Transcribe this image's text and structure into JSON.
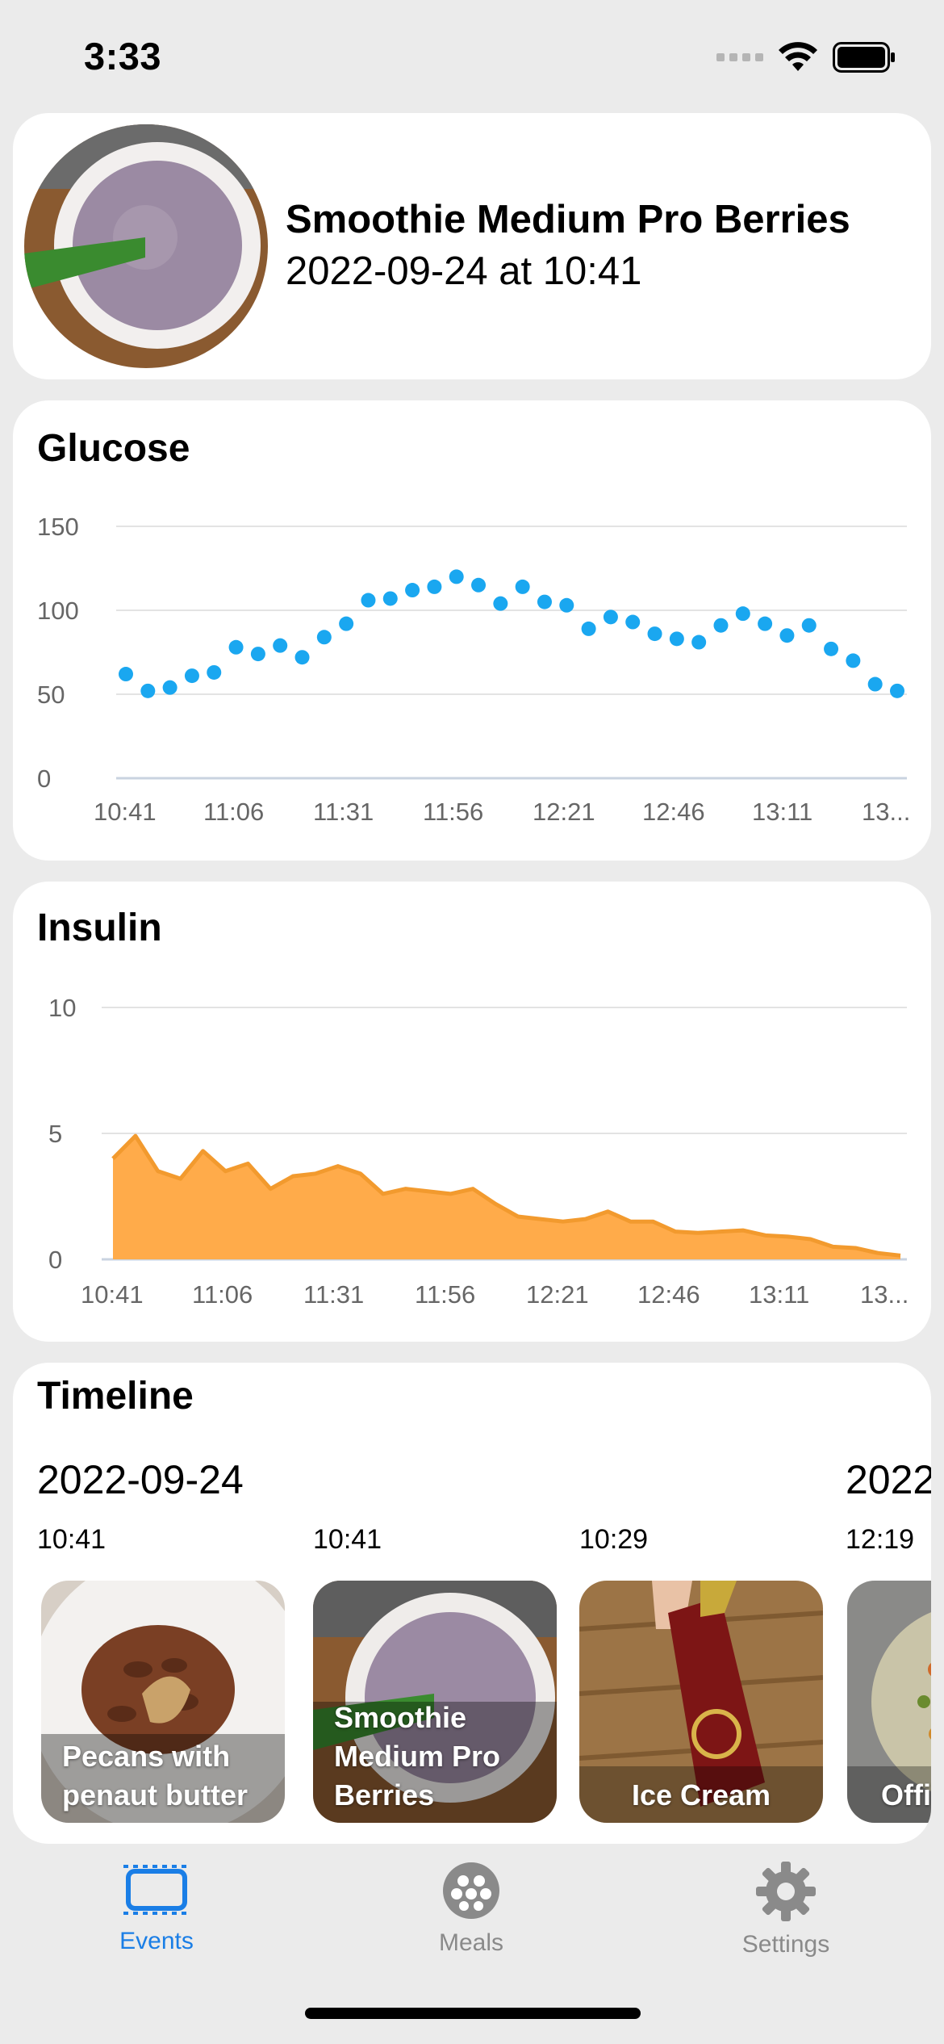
{
  "status_bar": {
    "time": "3:33"
  },
  "header": {
    "meal_name": "Smoothie Medium Pro Berries",
    "meal_datetime": "2022-09-24 at 10:41"
  },
  "glucose": {
    "title": "Glucose",
    "chart_data": {
      "type": "scatter",
      "title": "Glucose",
      "x_tick_labels": [
        "10:41",
        "11:06",
        "11:31",
        "11:56",
        "12:21",
        "12:46",
        "13:11",
        "13..."
      ],
      "y_ticks": [
        "0",
        "50",
        "100",
        "150"
      ],
      "ylim": [
        0,
        150
      ],
      "grid": true,
      "color": "#1aa7f0",
      "values": [
        62,
        52,
        54,
        61,
        63,
        78,
        74,
        79,
        72,
        84,
        92,
        106,
        107,
        112,
        114,
        120,
        115,
        104,
        114,
        105,
        103,
        89,
        96,
        93,
        86,
        83,
        81,
        91,
        98,
        92,
        85,
        91,
        77,
        70,
        56,
        52
      ]
    }
  },
  "insulin": {
    "title": "Insulin",
    "chart_data": {
      "type": "area",
      "title": "Insulin",
      "x_tick_labels": [
        "10:41",
        "11:06",
        "11:31",
        "11:56",
        "12:21",
        "12:46",
        "13:11",
        "13..."
      ],
      "y_ticks": [
        "0",
        "5",
        "10"
      ],
      "ylim": [
        0,
        10
      ],
      "grid": true,
      "color": "#f29a2e",
      "fill": "#ffab4a",
      "values": [
        4.0,
        4.9,
        3.5,
        3.2,
        4.3,
        3.5,
        3.8,
        2.8,
        3.3,
        3.4,
        3.7,
        3.4,
        2.6,
        2.8,
        2.7,
        2.6,
        2.8,
        2.2,
        1.7,
        1.6,
        1.5,
        1.6,
        1.9,
        1.5,
        1.5,
        1.1,
        1.05,
        1.1,
        1.15,
        0.95,
        0.9,
        0.8,
        0.5,
        0.45,
        0.25,
        0.15
      ]
    }
  },
  "timeline": {
    "title": "Timeline",
    "dates": [
      "2022-09-24",
      "2022"
    ],
    "items": [
      {
        "time": "10:41",
        "label": "Pecans with penaut butter"
      },
      {
        "time": "10:41",
        "label": "Smoothie Medium Pro Berries"
      },
      {
        "time": "10:29",
        "label": "Ice Cream"
      },
      {
        "time": "12:19",
        "label": "Offi"
      }
    ]
  },
  "tabs": [
    {
      "label": "Events",
      "icon": "events-icon",
      "active": true
    },
    {
      "label": "Meals",
      "icon": "meals-icon",
      "active": false
    },
    {
      "label": "Settings",
      "icon": "gear-icon",
      "active": false
    }
  ],
  "colors": {
    "accent": "#1a7ee6",
    "inactive": "#8a8a8a"
  }
}
